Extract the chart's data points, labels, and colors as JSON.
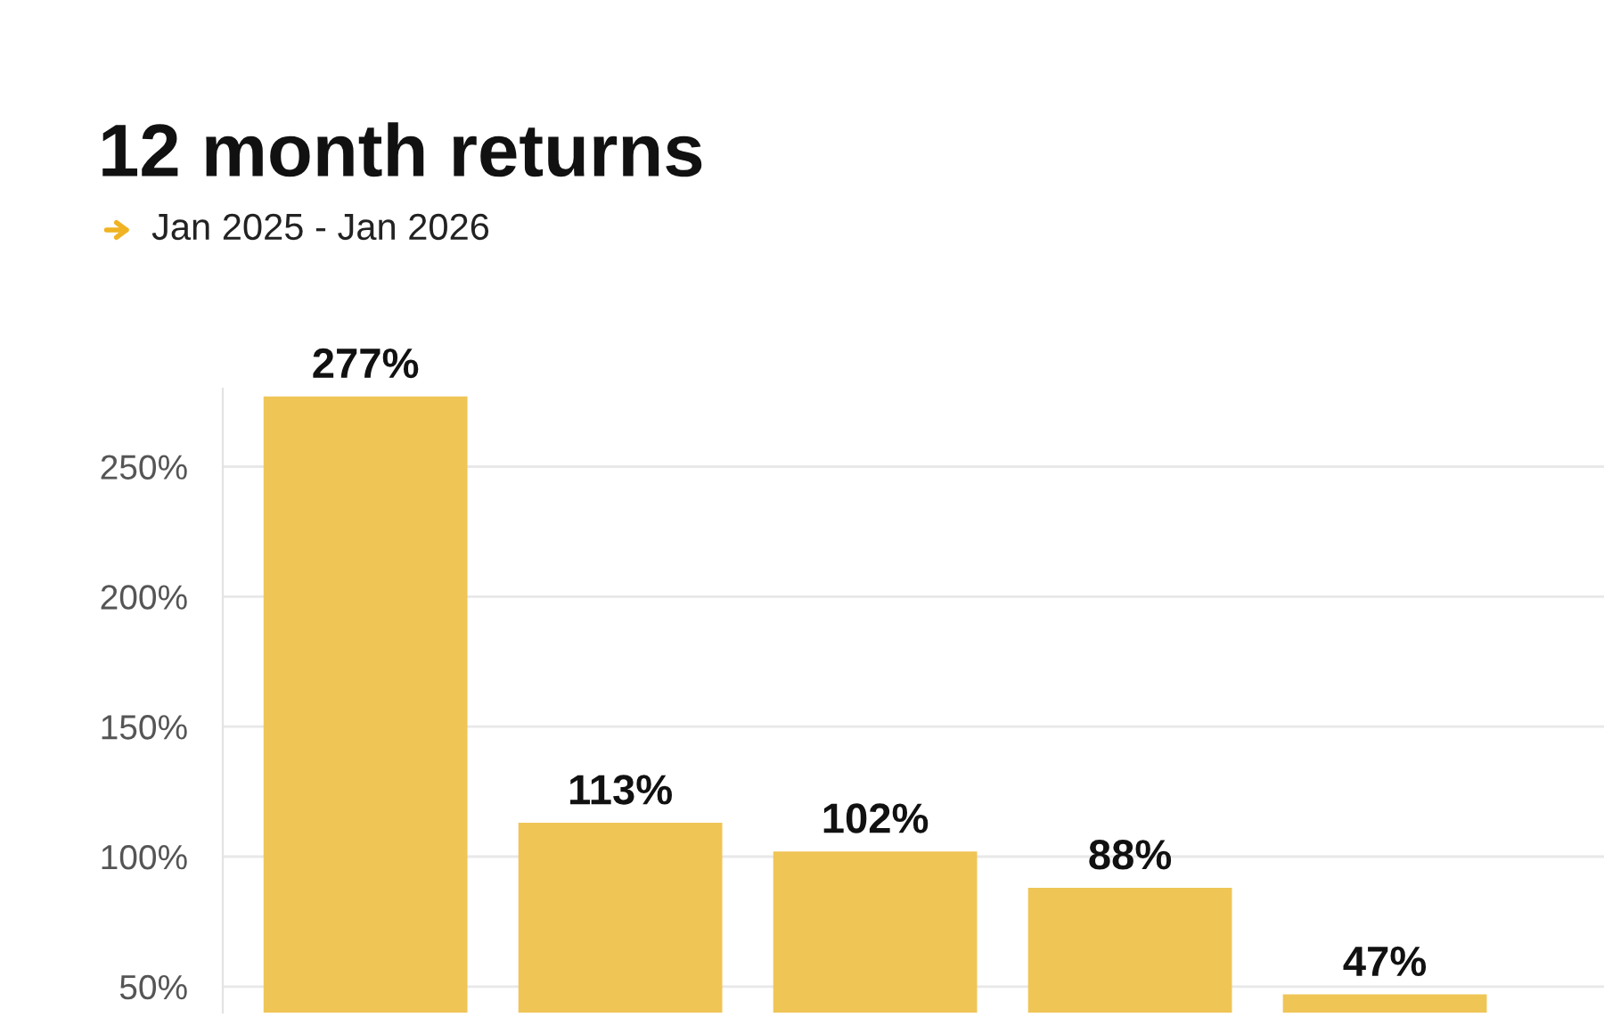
{
  "chart_data": {
    "type": "bar",
    "title": "12 month returns",
    "subtitle": "Jan 2025 - Jan 2026",
    "categories": [
      null,
      null,
      null,
      null,
      null
    ],
    "values": [
      277,
      113,
      102,
      88,
      47
    ],
    "value_labels": [
      "277%",
      "113%",
      "102%",
      "88%",
      "47%"
    ],
    "color": "#efc556",
    "ylim": [
      40,
      280
    ],
    "yticks": [
      {
        "value": 50,
        "label": "50%"
      },
      {
        "value": 100,
        "label": "100%"
      },
      {
        "value": 150,
        "label": "150%"
      },
      {
        "value": 200,
        "label": "200%"
      },
      {
        "value": 250,
        "label": "250%"
      }
    ],
    "grid": "y",
    "tick_labels": "y"
  }
}
